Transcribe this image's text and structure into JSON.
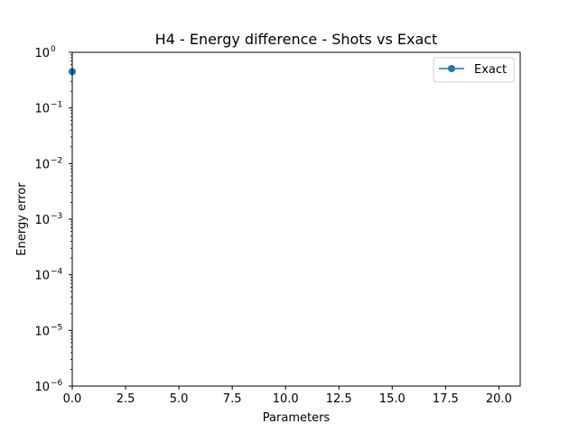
{
  "chart_data": {
    "type": "line",
    "title": "H4 - Energy difference - Shots vs Exact",
    "xlabel": "Parameters",
    "ylabel": "Energy error",
    "xlim": [
      0,
      21
    ],
    "ylim": [
      1e-06,
      1
    ],
    "yscale": "log",
    "grid": false,
    "legend_position": "top-right",
    "x_ticks": [
      0,
      2.5,
      5,
      7.5,
      10,
      12.5,
      15,
      17.5,
      20
    ],
    "x_tick_labels": [
      "0.0",
      "2.5",
      "5.0",
      "7.5",
      "10.0",
      "12.5",
      "15.0",
      "17.5",
      "20.0"
    ],
    "y_tick_exponents": [
      0,
      -1,
      -2,
      -3,
      -4,
      -5,
      -6
    ],
    "y_tick_base": "10",
    "series": [
      {
        "name": "Exact",
        "color": "#1f77b4",
        "marker": "circle",
        "x": [
          0
        ],
        "y": [
          0.45
        ]
      }
    ]
  }
}
